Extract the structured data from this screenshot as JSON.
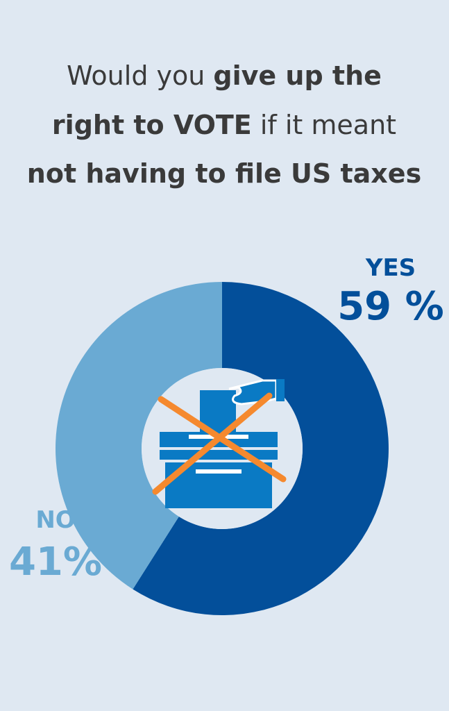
{
  "chart_data": {
    "type": "pie",
    "title": [
      [
        {
          "text": "Would you ",
          "bold": false
        },
        {
          "text": "give up the",
          "bold": true
        }
      ],
      [
        {
          "text": "right to VOTE",
          "bold": true
        },
        {
          "text": " if it meant",
          "bold": false
        }
      ],
      [
        {
          "text": "not having to file US taxes",
          "bold": true
        }
      ]
    ],
    "categories": [
      "YES",
      "NO"
    ],
    "values": [
      59,
      41
    ],
    "value_labels": [
      "59 %",
      "41%"
    ],
    "colors": [
      "#034f9a",
      "#6aaad3"
    ],
    "donut": true
  }
}
